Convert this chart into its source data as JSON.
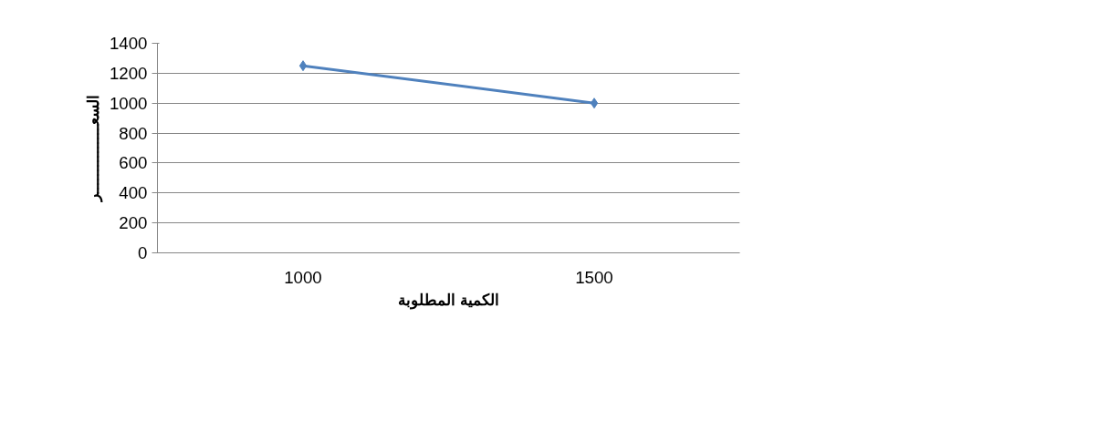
{
  "chart_data": {
    "type": "line",
    "categories": [
      "1000",
      "1500"
    ],
    "series": [
      {
        "color": "#4f81bd",
        "values": [
          1250,
          1000
        ]
      }
    ],
    "xlabel": "الكمية المطلوبة",
    "ylabel": "السعـــــــــــــــر",
    "ylim": [
      0,
      1400
    ],
    "yticks": [
      0,
      200,
      400,
      600,
      800,
      1000,
      1200,
      1400
    ],
    "grid": "y",
    "marker": "diamond",
    "line_style": "solid"
  }
}
